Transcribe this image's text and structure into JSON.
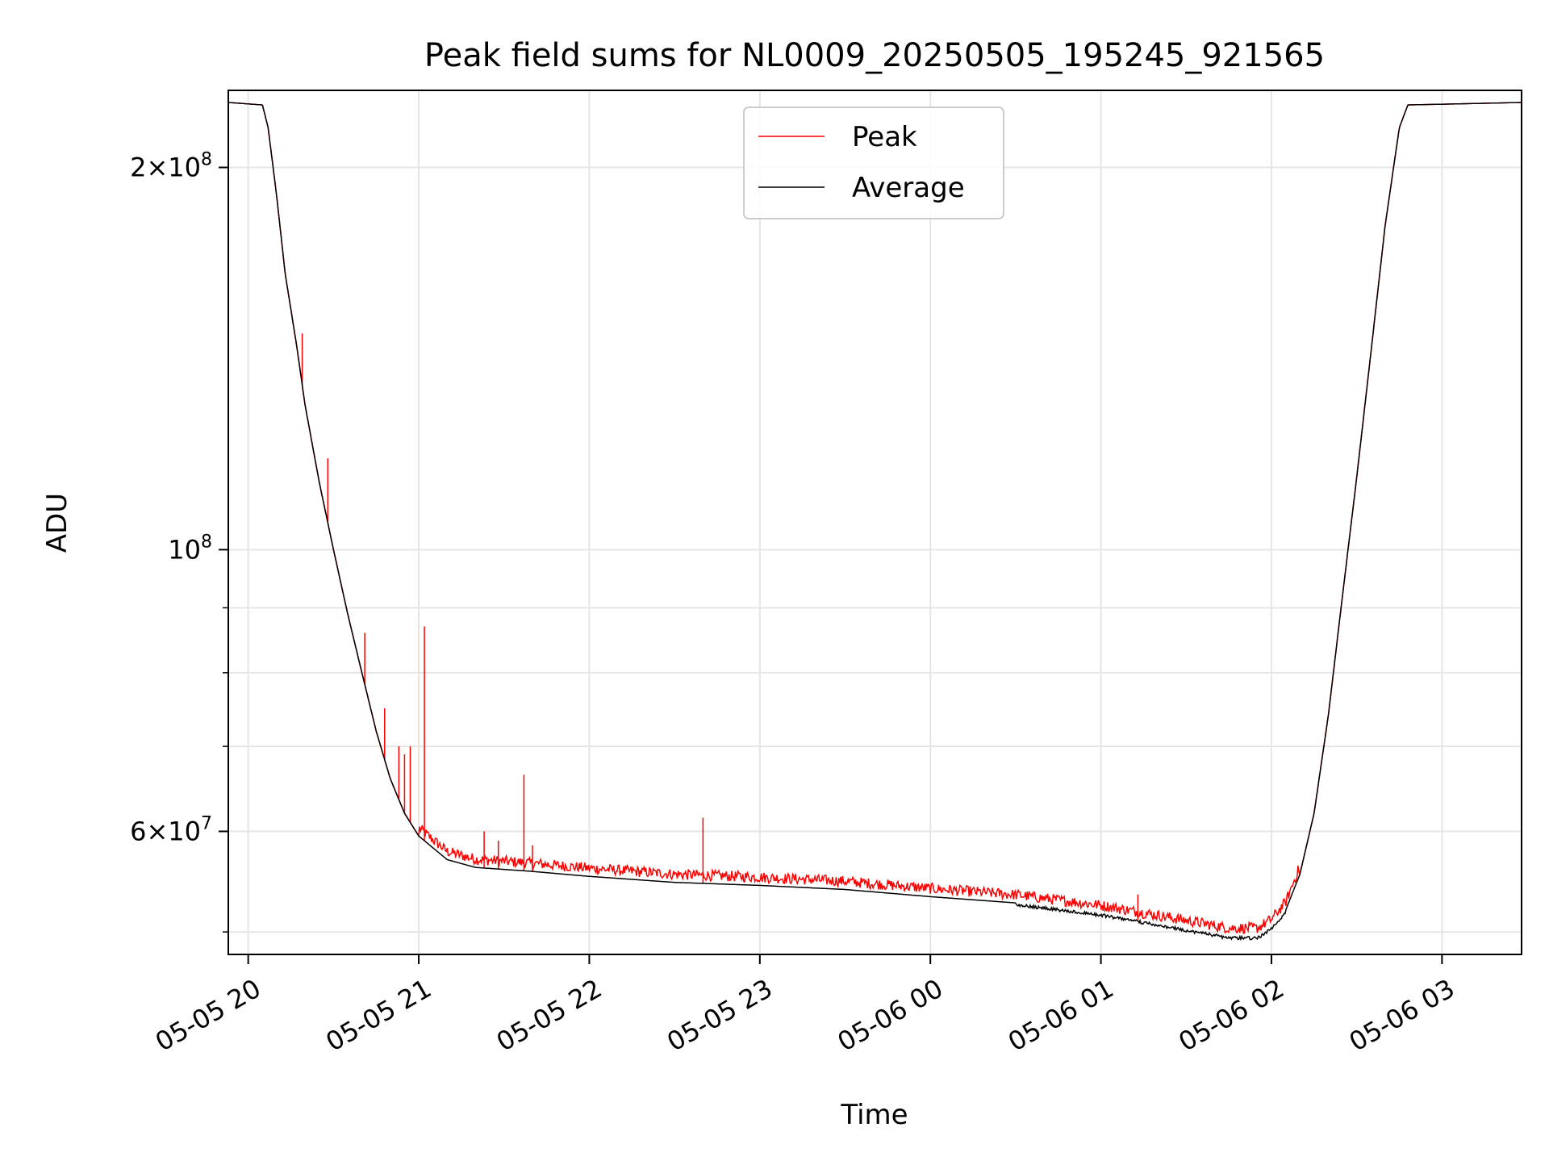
{
  "chart_data": {
    "type": "line",
    "title": "Peak field sums for NL0009_20250505_195245_921565",
    "xlabel": "Time",
    "ylabel": "ADU",
    "y_scale": "log",
    "ylim": [
      48000000,
      230000000
    ],
    "xlim": [
      "2025-05-05 19:53",
      "2025-05-06 03:28"
    ],
    "x_ticks": [
      "05-05 20",
      "05-05 21",
      "05-05 22",
      "05-05 23",
      "05-06 00",
      "05-06 01",
      "05-06 02",
      "05-06 03"
    ],
    "x_tick_times": [
      "2025-05-05 20:00",
      "2025-05-05 21:00",
      "2025-05-05 22:00",
      "2025-05-05 23:00",
      "2025-05-06 00:00",
      "2025-05-06 01:00",
      "2025-05-06 02:00",
      "2025-05-06 03:00"
    ],
    "y_tick_labels": [
      {
        "value": 200000000,
        "mantissa": "2",
        "exponent": "8"
      },
      {
        "value": 100000000,
        "mantissa": "",
        "exponent": "8"
      },
      {
        "value": 60000000,
        "mantissa": "6",
        "exponent": "7"
      }
    ],
    "y_minor_ticks": [
      50000000,
      70000000,
      80000000,
      90000000
    ],
    "grid": true,
    "legend": {
      "position": "top-center"
    },
    "series": [
      {
        "name": "Average",
        "color": "#000000",
        "points": [
          [
            "2025-05-05 19:53",
            225000000
          ],
          [
            "2025-05-05 20:05",
            224000000
          ],
          [
            "2025-05-05 20:07",
            215000000
          ],
          [
            "2025-05-05 20:10",
            190000000
          ],
          [
            "2025-05-05 20:13",
            165000000
          ],
          [
            "2025-05-05 20:17",
            145000000
          ],
          [
            "2025-05-05 20:20",
            130000000
          ],
          [
            "2025-05-05 20:25",
            113000000
          ],
          [
            "2025-05-05 20:30",
            100000000
          ],
          [
            "2025-05-05 20:35",
            89000000
          ],
          [
            "2025-05-05 20:40",
            80000000
          ],
          [
            "2025-05-05 20:45",
            72000000
          ],
          [
            "2025-05-05 20:50",
            66000000
          ],
          [
            "2025-05-05 20:55",
            62000000
          ],
          [
            "2025-05-05 21:00",
            59500000
          ],
          [
            "2025-05-05 21:10",
            57000000
          ],
          [
            "2025-05-05 21:20",
            56200000
          ],
          [
            "2025-05-05 21:40",
            55800000
          ],
          [
            "2025-05-05 22:00",
            55300000
          ],
          [
            "2025-05-05 22:30",
            54700000
          ],
          [
            "2025-05-05 23:00",
            54400000
          ],
          [
            "2025-05-05 23:30",
            54000000
          ],
          [
            "2025-05-06 00:00",
            53300000
          ],
          [
            "2025-05-06 00:30",
            52700000
          ],
          [
            "2025-05-06 01:00",
            51700000
          ],
          [
            "2025-05-06 01:30",
            50300000
          ],
          [
            "2025-05-06 01:45",
            49600000
          ],
          [
            "2025-05-06 01:55",
            49600000
          ],
          [
            "2025-05-06 02:00",
            50400000
          ],
          [
            "2025-05-06 02:05",
            52000000
          ],
          [
            "2025-05-06 02:10",
            55500000
          ],
          [
            "2025-05-06 02:15",
            62000000
          ],
          [
            "2025-05-06 02:20",
            74000000
          ],
          [
            "2025-05-06 02:25",
            92000000
          ],
          [
            "2025-05-06 02:30",
            114000000
          ],
          [
            "2025-05-06 02:35",
            143000000
          ],
          [
            "2025-05-06 02:40",
            180000000
          ],
          [
            "2025-05-06 02:45",
            215000000
          ],
          [
            "2025-05-06 02:48",
            224000000
          ],
          [
            "2025-05-06 03:28",
            225000000
          ]
        ]
      },
      {
        "name": "Peak",
        "color": "#ff0000",
        "spikes": [
          [
            "2025-05-05 20:19",
            148000000
          ],
          [
            "2025-05-05 20:28",
            118000000
          ],
          [
            "2025-05-05 20:41",
            86000000
          ],
          [
            "2025-05-05 20:48",
            75000000
          ],
          [
            "2025-05-05 20:53",
            70000000
          ],
          [
            "2025-05-05 20:55",
            69000000
          ],
          [
            "2025-05-05 20:57",
            70000000
          ],
          [
            "2025-05-05 21:02",
            87000000
          ],
          [
            "2025-05-05 21:23",
            60000000
          ],
          [
            "2025-05-05 21:28",
            59000000
          ],
          [
            "2025-05-05 21:37",
            66500000
          ],
          [
            "2025-05-05 21:40",
            58500000
          ],
          [
            "2025-05-05 22:40",
            61500000
          ],
          [
            "2025-05-06 01:13",
            53500000
          ]
        ]
      }
    ]
  }
}
